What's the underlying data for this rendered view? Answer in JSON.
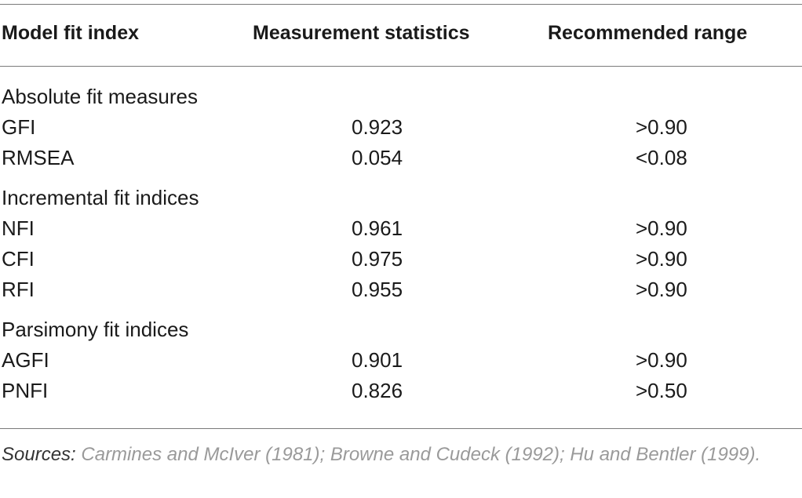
{
  "table": {
    "headers": [
      "Model fit index",
      "Measurement statistics",
      "Recommended range"
    ],
    "groups": [
      {
        "title": "Absolute fit measures",
        "rows": [
          {
            "index": "GFI",
            "value": "0.923",
            "range": ">0.90"
          },
          {
            "index": "RMSEA",
            "value": "0.054",
            "range": "<0.08"
          }
        ]
      },
      {
        "title": "Incremental fit indices",
        "rows": [
          {
            "index": "NFI",
            "value": "0.961",
            "range": ">0.90"
          },
          {
            "index": "CFI",
            "value": "0.975",
            "range": ">0.90"
          },
          {
            "index": "RFI",
            "value": "0.955",
            "range": ">0.90"
          }
        ]
      },
      {
        "title": "Parsimony fit indices",
        "rows": [
          {
            "index": "AGFI",
            "value": "0.901",
            "range": ">0.90"
          },
          {
            "index": "PNFI",
            "value": "0.826",
            "range": ">0.50"
          }
        ]
      }
    ]
  },
  "footnote": {
    "lead": "Sources:",
    "text": " Carmines and McIver (1981); Browne and Cudeck (1992); Hu and Bentler (1999)."
  }
}
